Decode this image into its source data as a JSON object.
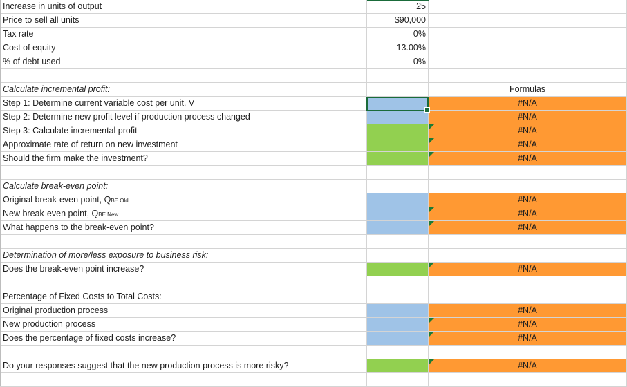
{
  "inputs": [
    {
      "label": "Increase in units of output",
      "value": "25"
    },
    {
      "label": "Price to sell all units",
      "value": "$90,000"
    },
    {
      "label": "Tax rate",
      "value": "0%"
    },
    {
      "label": "Cost of equity",
      "value": "13.00%"
    },
    {
      "label": "% of debt used",
      "value": "0%"
    }
  ],
  "formulas_header": "Formulas",
  "na": "#N/A",
  "incremental": {
    "heading": "Calculate incremental profit:",
    "step1": "Step 1: Determine current variable cost per unit, V",
    "step2": "Step 2: Determine new profit level if production process changed",
    "step3": "Step 3: Calculate incremental profit",
    "rate": "Approximate rate of return on new investment",
    "invest": "Should the firm make the investment?"
  },
  "breakeven": {
    "heading": "Calculate break-even point:",
    "original_prefix": "Original break-even point, Q",
    "original_sub": "BE Old",
    "new_prefix": "New break-even point, Q",
    "new_sub": "BE New",
    "what": "What happens to the break-even point?"
  },
  "exposure": {
    "heading": "Determination of more/less exposure to business risk:",
    "question": "Does the break-even point increase?"
  },
  "fixed": {
    "heading": "Percentage of Fixed Costs to Total Costs:",
    "original": "Original production process",
    "new": "New production process",
    "question": "Does the percentage of fixed costs increase?"
  },
  "final_question": "Do your responses suggest that the new production process is more risky?"
}
